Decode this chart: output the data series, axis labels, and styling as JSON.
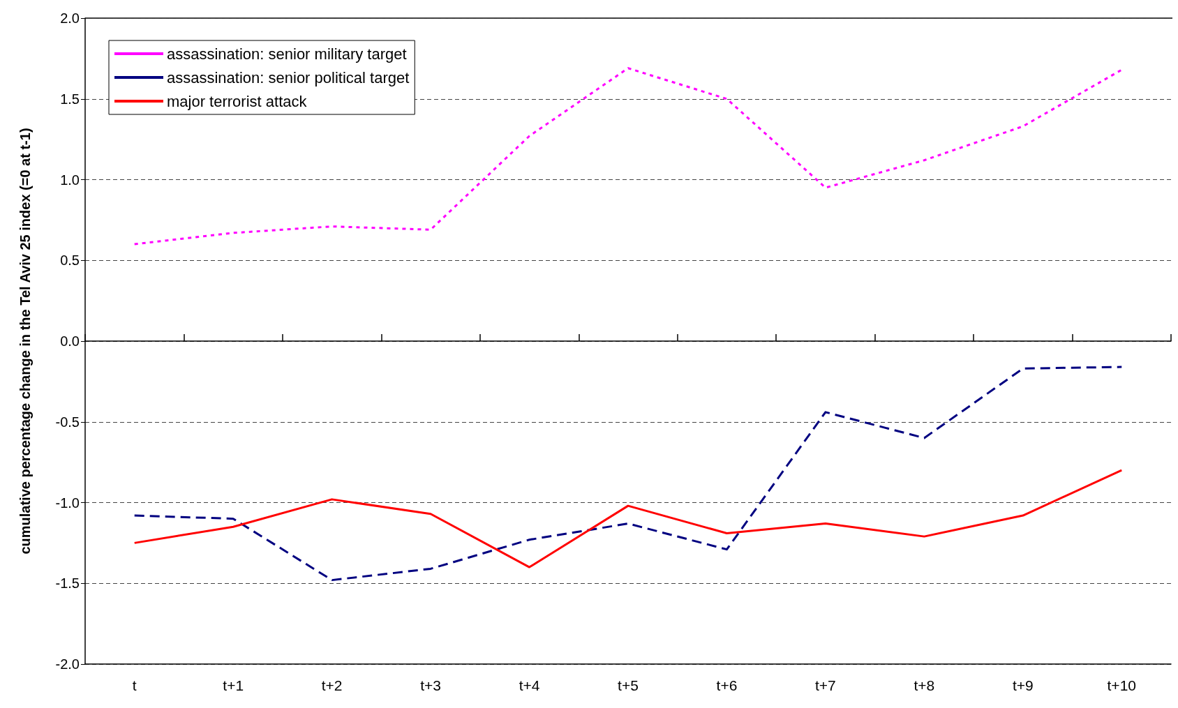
{
  "chart_data": {
    "type": "line",
    "ylabel": "cumulative percentage change in the Tel Aviv 25 index (=0 at t-1)",
    "categories": [
      "t",
      "t+1",
      "t+2",
      "t+3",
      "t+4",
      "t+5",
      "t+6",
      "t+7",
      "t+8",
      "t+9",
      "t+10"
    ],
    "series": [
      {
        "name": "assassination: senior military target",
        "color": "#ff00ff",
        "line_style": "dotted",
        "values": [
          0.6,
          0.67,
          0.71,
          0.69,
          1.27,
          1.69,
          1.5,
          0.95,
          1.12,
          1.33,
          1.68
        ]
      },
      {
        "name": "assassination: senior political target",
        "color": "#000080",
        "line_style": "dashed",
        "values": [
          -1.08,
          -1.1,
          -1.48,
          -1.41,
          -1.23,
          -1.13,
          -1.29,
          -0.44,
          -0.6,
          -0.17,
          -0.16
        ]
      },
      {
        "name": "major terrorist attack",
        "color": "#ff0000",
        "line_style": "solid",
        "values": [
          -1.25,
          -1.15,
          -0.98,
          -1.07,
          -1.4,
          -1.02,
          -1.19,
          -1.13,
          -1.21,
          -1.08,
          -0.8
        ]
      }
    ],
    "ylim": [
      -2,
      2
    ],
    "yticks": [
      {
        "value": -2,
        "label": "-2.0"
      },
      {
        "value": -1.5,
        "label": "-1.5"
      },
      {
        "value": -1,
        "label": "-1.0"
      },
      {
        "value": -0.5,
        "label": "-0.5"
      },
      {
        "value": 0,
        "label": "0.0"
      },
      {
        "value": 0.5,
        "label": "0.5"
      },
      {
        "value": 1,
        "label": "1.0"
      },
      {
        "value": 1.5,
        "label": "1.5"
      },
      {
        "value": 2,
        "label": "2.0"
      }
    ],
    "grid": "y",
    "legend": "top left",
    "marker": "none"
  }
}
